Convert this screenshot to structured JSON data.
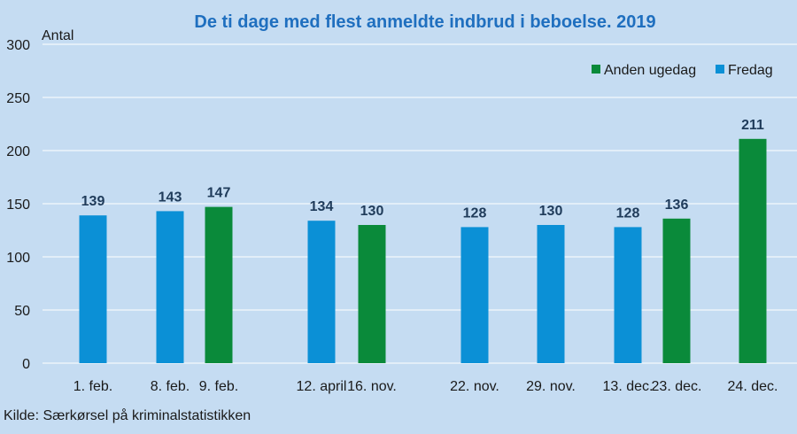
{
  "chart_data": {
    "type": "bar",
    "title": "De ti dage med flest anmeldte indbrud i beboelse. 2019",
    "ylabel": "Antal",
    "xlabel": "",
    "ylim": [
      0,
      300
    ],
    "yticks": [
      0,
      50,
      100,
      150,
      200,
      250,
      300
    ],
    "grid": true,
    "legend_position": "top-right",
    "categories": [
      "1. feb.",
      "8. feb.",
      "9. feb.",
      "12. april",
      "16. nov.",
      "22. nov.",
      "29. nov.",
      "13. dec.",
      "23. dec.",
      "24. dec."
    ],
    "series": [
      {
        "name": "Anden ugedag",
        "color": "#0a8a3a",
        "values": [
          null,
          null,
          147,
          null,
          130,
          null,
          null,
          null,
          136,
          211
        ]
      },
      {
        "name": "Fredag",
        "color": "#0b90d6",
        "values": [
          139,
          143,
          null,
          134,
          null,
          128,
          130,
          128,
          null,
          null
        ]
      }
    ],
    "source": "Kilde: Særkørsel på kriminalstatistikken"
  },
  "colors": {
    "background": "#c5dcf2",
    "title": "#1f6fbf",
    "grid": "#ffffff"
  }
}
